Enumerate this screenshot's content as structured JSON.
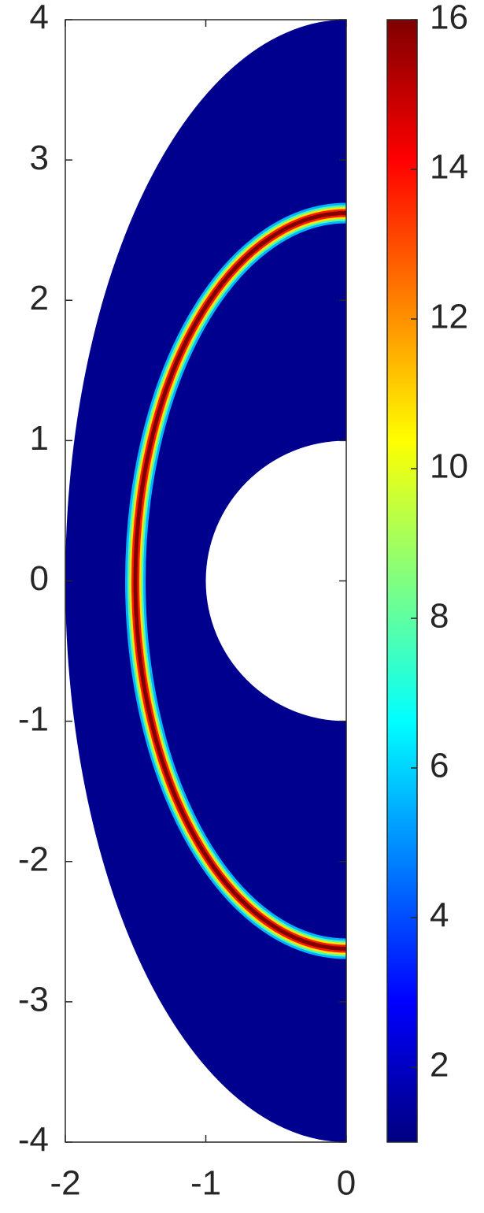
{
  "chart_data": {
    "type": "field",
    "xlim": [
      -2,
      0
    ],
    "xticks": [
      -2,
      -1,
      0
    ],
    "ylim": [
      -4,
      4
    ],
    "yticks": [
      -4,
      -3,
      -2,
      -1,
      0,
      1,
      2,
      3,
      4
    ],
    "colormap": "jet",
    "clim": [
      1,
      16
    ],
    "colorbar_ticks": [
      2,
      4,
      6,
      8,
      10,
      12,
      14,
      16
    ]
  }
}
